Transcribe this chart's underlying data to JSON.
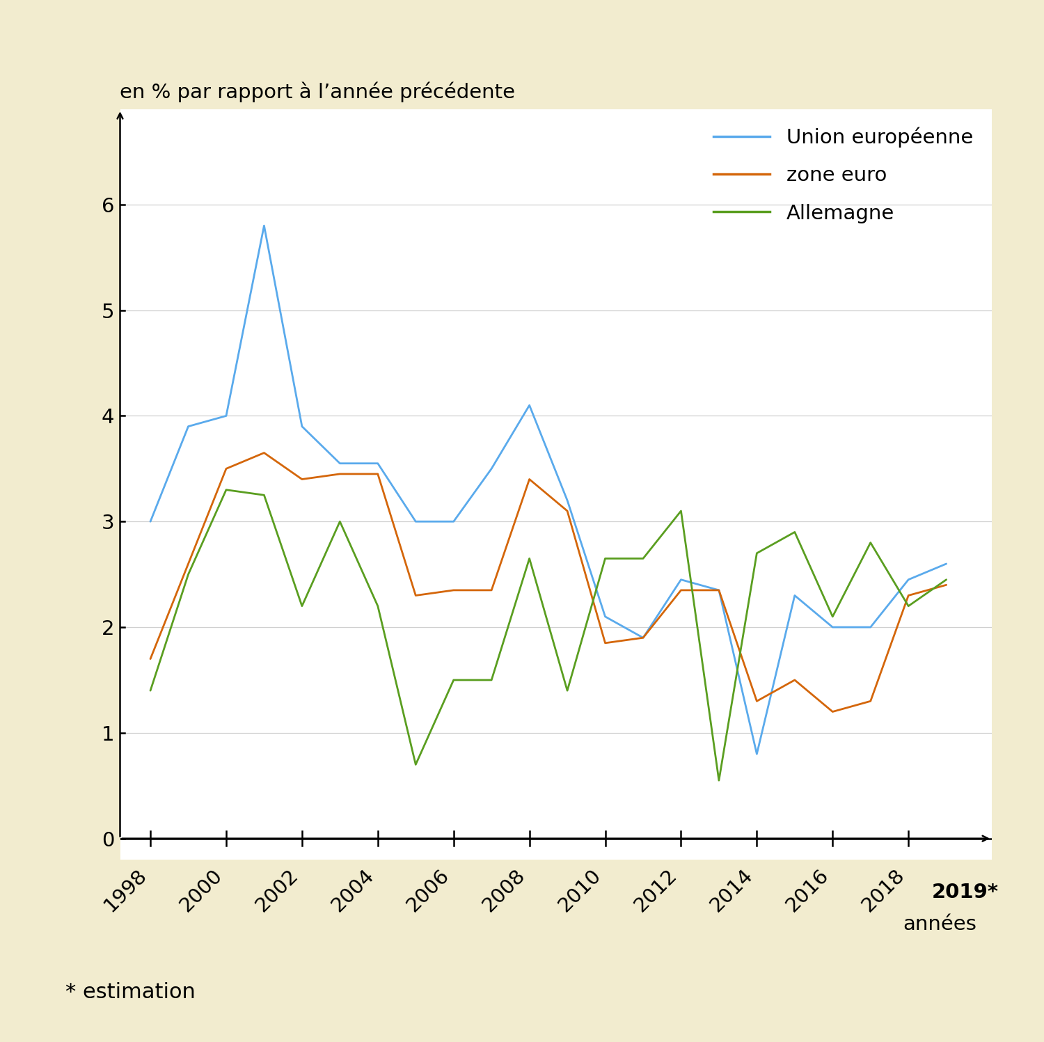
{
  "years": [
    1998,
    1999,
    2000,
    2001,
    2002,
    2003,
    2004,
    2005,
    2006,
    2007,
    2008,
    2009,
    2010,
    2011,
    2012,
    2013,
    2014,
    2015,
    2016,
    2017,
    2018,
    2019
  ],
  "ue": [
    3.0,
    3.9,
    4.0,
    5.8,
    3.9,
    3.55,
    3.55,
    3.0,
    3.0,
    3.5,
    4.1,
    3.2,
    2.1,
    1.9,
    2.45,
    2.35,
    0.8,
    2.3,
    2.0,
    2.0,
    2.45,
    2.6
  ],
  "ze": [
    1.7,
    2.6,
    3.5,
    3.65,
    3.4,
    3.45,
    3.45,
    2.3,
    2.35,
    2.35,
    3.4,
    3.1,
    1.85,
    1.9,
    2.35,
    2.35,
    1.3,
    1.5,
    1.2,
    1.3,
    2.3,
    2.4
  ],
  "de": [
    1.4,
    2.5,
    3.3,
    3.25,
    2.2,
    3.0,
    2.2,
    0.7,
    1.5,
    1.5,
    2.65,
    1.4,
    2.65,
    2.65,
    3.1,
    0.55,
    2.7,
    2.9,
    2.1,
    2.8,
    2.2,
    2.45
  ],
  "ue_color": "#5aaaec",
  "ze_color": "#d4660a",
  "de_color": "#5a9e20",
  "background_outer": "#f2eccf",
  "background_inner": "#ffffff",
  "ylabel": "en % par rapport à l’année précédente",
  "xlabel": "années",
  "yticks": [
    0,
    1,
    2,
    3,
    4,
    5,
    6
  ],
  "ylim": [
    -0.2,
    6.9
  ],
  "xlim_min": 1997.2,
  "xlim_max": 2020.2,
  "xtick_years": [
    1998,
    2000,
    2002,
    2004,
    2006,
    2008,
    2010,
    2012,
    2014,
    2016,
    2018
  ],
  "legend_labels": [
    "Union européenne",
    "zone euro",
    "Allemagne"
  ],
  "footnote": "* estimation",
  "year2019_label": "2019*",
  "line_width": 2.0
}
